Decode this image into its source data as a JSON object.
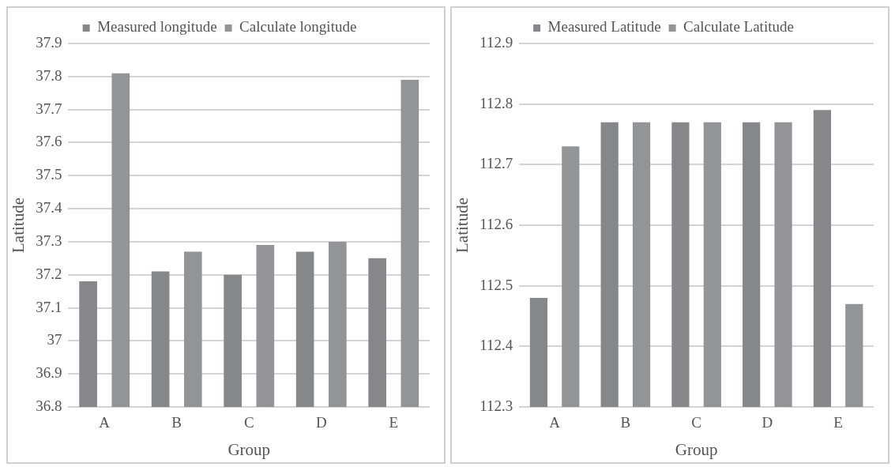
{
  "chart_data": [
    {
      "type": "bar",
      "xlabel": "Group",
      "ylabel": "Latitude",
      "categories": [
        "A",
        "B",
        "C",
        "D",
        "E"
      ],
      "series": [
        {
          "name": "Measured longitude",
          "color": "#86878b",
          "values": [
            37.18,
            37.21,
            37.2,
            37.27,
            37.25
          ]
        },
        {
          "name": "Calculate longitude",
          "color": "#939498",
          "values": [
            37.81,
            37.27,
            37.29,
            37.3,
            37.79
          ]
        }
      ],
      "ylim": [
        36.8,
        37.9
      ],
      "yticks": [
        36.8,
        36.9,
        37,
        37.1,
        37.2,
        37.3,
        37.4,
        37.5,
        37.6,
        37.7,
        37.8,
        37.9
      ],
      "grid": "y",
      "legend": "top"
    },
    {
      "type": "bar",
      "xlabel": "Group",
      "ylabel": "Latitude",
      "categories": [
        "A",
        "B",
        "C",
        "D",
        "E"
      ],
      "series": [
        {
          "name": "Measured Latitude",
          "color": "#86878b",
          "values": [
            112.48,
            112.77,
            112.77,
            112.77,
            112.79
          ]
        },
        {
          "name": "Calculate Latitude",
          "color": "#939498",
          "values": [
            112.73,
            112.77,
            112.77,
            112.77,
            112.47
          ]
        }
      ],
      "ylim": [
        112.3,
        112.9
      ],
      "yticks": [
        112.3,
        112.4,
        112.5,
        112.6,
        112.7,
        112.8,
        112.9
      ],
      "grid": "y",
      "legend": "top"
    }
  ]
}
